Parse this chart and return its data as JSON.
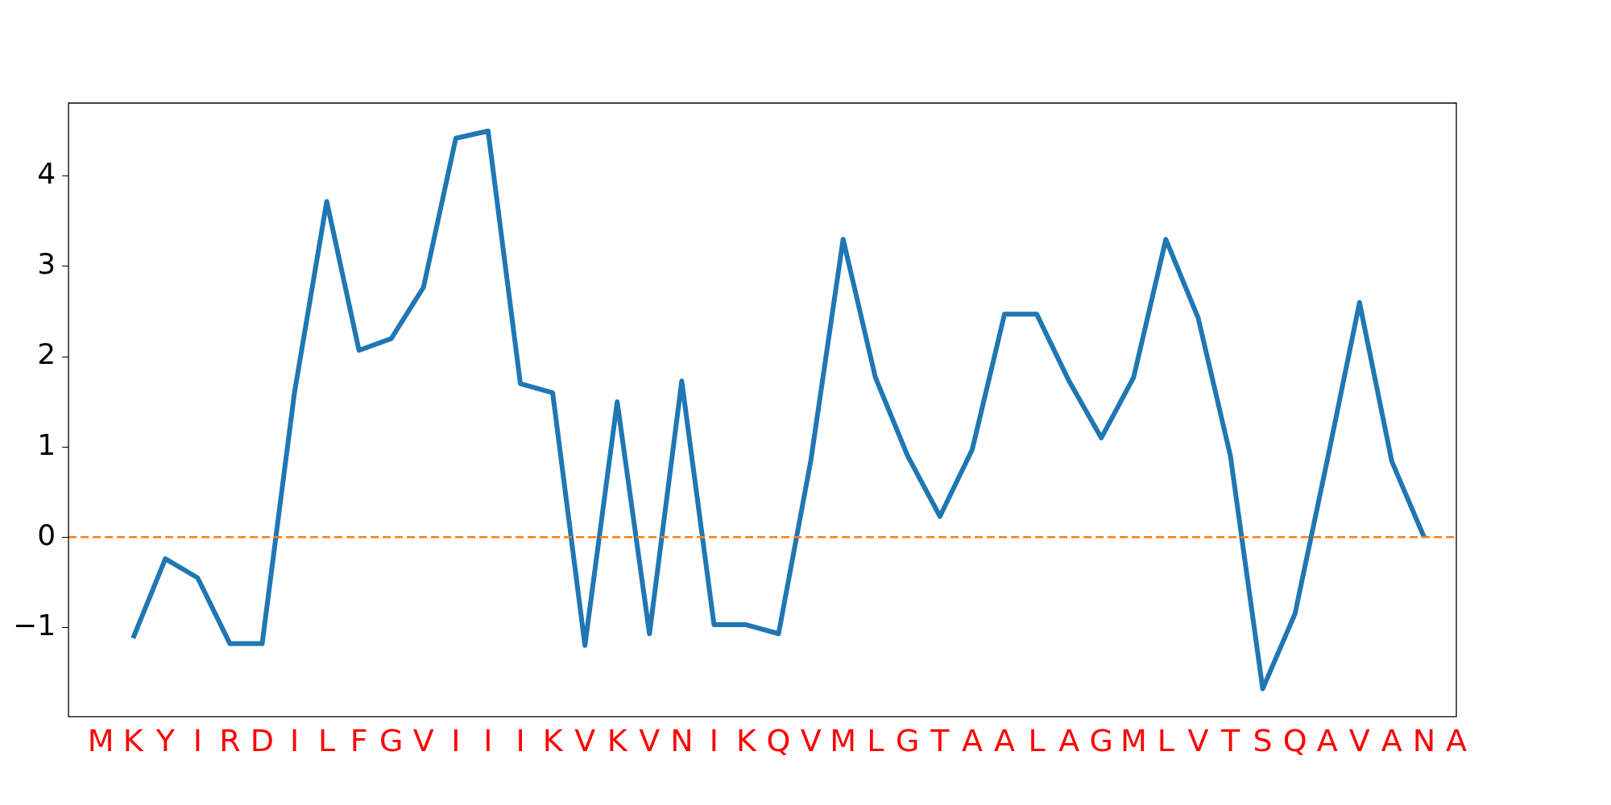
{
  "chart_data": {
    "type": "line",
    "categories": [
      "M",
      "K",
      "Y",
      "I",
      "R",
      "D",
      "I",
      "L",
      "F",
      "G",
      "V",
      "I",
      "I",
      "I",
      "K",
      "V",
      "K",
      "V",
      "N",
      "I",
      "K",
      "Q",
      "V",
      "M",
      "L",
      "G",
      "T",
      "A",
      "A",
      "L",
      "A",
      "G",
      "M",
      "L",
      "V",
      "T",
      "S",
      "Q",
      "A",
      "V",
      "A",
      "N",
      "A"
    ],
    "series": [
      {
        "color": "#1f77b4",
        "values": [
          null,
          -1.12,
          -0.24,
          -0.45,
          -1.18,
          -1.18,
          1.6,
          3.72,
          2.07,
          2.2,
          2.77,
          4.42,
          4.5,
          1.7,
          1.6,
          -1.2,
          1.5,
          -1.07,
          1.73,
          -0.97,
          -0.97,
          -1.07,
          0.85,
          3.3,
          1.77,
          0.9,
          0.23,
          0.97,
          2.47,
          2.47,
          1.73,
          1.1,
          1.77,
          3.3,
          2.43,
          0.9,
          -1.68,
          -0.85,
          0.85,
          2.6,
          0.84,
          0.0,
          null
        ]
      }
    ],
    "ylim": [
      -1.99,
      4.81
    ],
    "yticks": [
      {
        "value": -1,
        "label": "−1"
      },
      0,
      1,
      2,
      3,
      4
    ],
    "ref_lines": [
      {
        "axis": "y",
        "value": 0,
        "color": "#ff7f0e",
        "line_style": "dashed"
      }
    ],
    "grid": false,
    "legend": false,
    "marker": "none",
    "line_style": "solid"
  }
}
